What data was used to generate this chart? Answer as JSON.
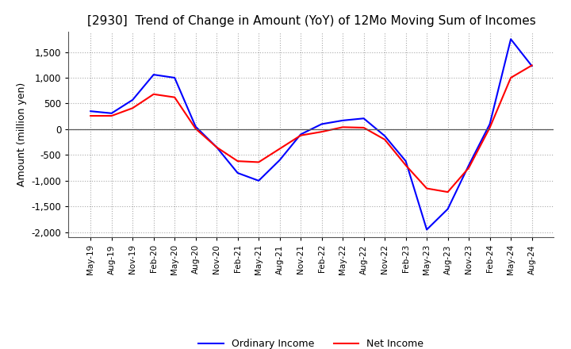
{
  "title": "[2930]  Trend of Change in Amount (YoY) of 12Mo Moving Sum of Incomes",
  "ylabel": "Amount (million yen)",
  "ylim": [
    -2100,
    1900
  ],
  "yticks": [
    -2000,
    -1500,
    -1000,
    -500,
    0,
    500,
    1000,
    1500
  ],
  "background_color": "#ffffff",
  "grid_color": "#aaaaaa",
  "x_labels": [
    "May-19",
    "Aug-19",
    "Nov-19",
    "Feb-20",
    "May-20",
    "Aug-20",
    "Nov-20",
    "Feb-21",
    "May-21",
    "Aug-21",
    "Nov-21",
    "Feb-22",
    "May-22",
    "Aug-22",
    "Nov-22",
    "Feb-23",
    "May-23",
    "Aug-23",
    "Nov-23",
    "Feb-24",
    "May-24",
    "Aug-24"
  ],
  "ordinary_income": [
    350,
    310,
    570,
    1060,
    1000,
    50,
    -350,
    -850,
    -1000,
    -600,
    -100,
    100,
    170,
    210,
    -130,
    -620,
    -1950,
    -1550,
    -700,
    100,
    1750,
    1230
  ],
  "net_income": [
    260,
    260,
    410,
    680,
    620,
    10,
    -350,
    -620,
    -640,
    -380,
    -120,
    -50,
    40,
    30,
    -200,
    -700,
    -1150,
    -1220,
    -750,
    30,
    1000,
    1240
  ],
  "ordinary_color": "#0000ff",
  "net_color": "#ff0000",
  "title_fontsize": 11,
  "legend_labels": [
    "Ordinary Income",
    "Net Income"
  ]
}
